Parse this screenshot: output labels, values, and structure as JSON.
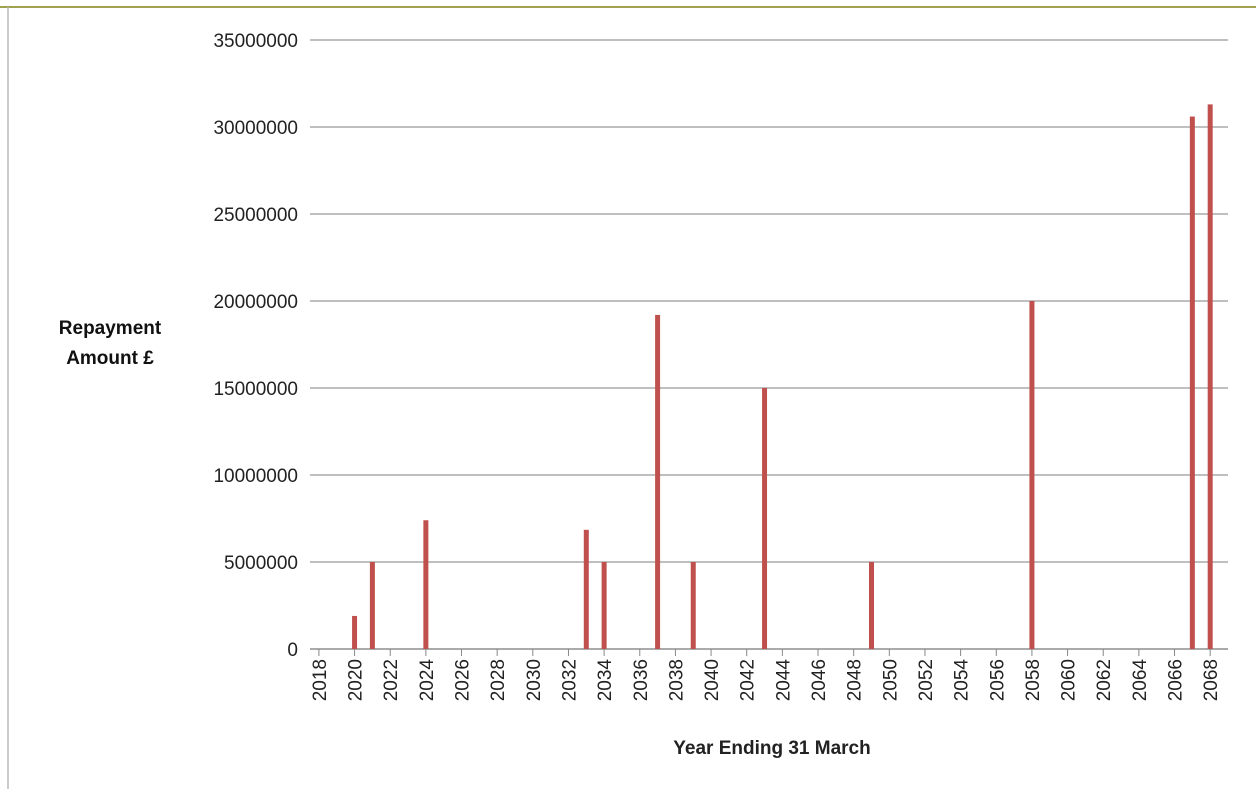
{
  "chart_data": {
    "type": "bar",
    "y_label": "Repayment Amount £",
    "x_label": "Year Ending 31 March",
    "x": [
      2020,
      2021,
      2024,
      2033,
      2034,
      2037,
      2039,
      2043,
      2049,
      2058,
      2067,
      2068
    ],
    "values": [
      1900000,
      5000000,
      7400000,
      6850000,
      5000000,
      19200000,
      5000000,
      15000000,
      5000000,
      20000000,
      30600000,
      31300000
    ],
    "color": "#c0504d",
    "xlim": [
      2017.5,
      2069
    ],
    "xticks": [
      2018,
      2020,
      2022,
      2024,
      2026,
      2028,
      2030,
      2032,
      2034,
      2036,
      2038,
      2040,
      2042,
      2044,
      2046,
      2048,
      2050,
      2052,
      2054,
      2056,
      2058,
      2060,
      2062,
      2064,
      2066,
      2068
    ],
    "ylim": [
      0,
      35000000
    ],
    "yticks": [
      0,
      5000000,
      10000000,
      15000000,
      20000000,
      25000000,
      30000000,
      35000000
    ],
    "grid": true
  }
}
